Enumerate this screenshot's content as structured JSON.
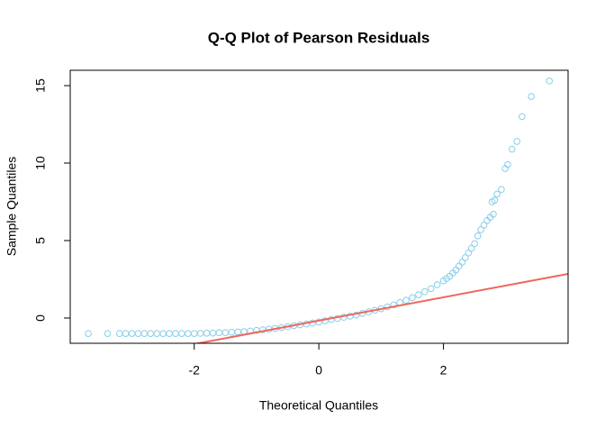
{
  "chart_data": {
    "type": "scatter",
    "title": "Q-Q Plot of Pearson Residuals",
    "x_label": "Theoretical Quantiles",
    "y_label": "Sample Quantiles",
    "color": "#87ceeb",
    "x": [
      -3.7,
      -3.39,
      -3.2,
      -3.1,
      -3.0,
      -2.9,
      -2.8,
      -2.7,
      -2.6,
      -2.5,
      -2.4,
      -2.3,
      -2.2,
      -2.1,
      -2.0,
      -1.9,
      -1.8,
      -1.7,
      -1.6,
      -1.5,
      -1.4,
      -1.3,
      -1.2,
      -1.1,
      -1.0,
      -0.9,
      -0.8,
      -0.7,
      -0.6,
      -0.5,
      -0.4,
      -0.3,
      -0.2,
      -0.1,
      0.0,
      0.1,
      0.2,
      0.3,
      0.4,
      0.5,
      0.6,
      0.7,
      0.8,
      0.9,
      1.0,
      1.1,
      1.2,
      1.3,
      1.4,
      1.5,
      1.6,
      1.7,
      1.8,
      1.9,
      2.0,
      2.05,
      2.1,
      2.15,
      2.2,
      2.25,
      2.3,
      2.35,
      2.4,
      2.45,
      2.5,
      2.55,
      2.6,
      2.65,
      2.7,
      2.75,
      2.8,
      2.78,
      2.82,
      2.86,
      2.93,
      2.99,
      3.03,
      3.1,
      3.18,
      3.26,
      3.41,
      3.7
    ],
    "values": [
      -1.0,
      -1.0,
      -1.0,
      -1.0,
      -1.0,
      -1.0,
      -1.0,
      -1.0,
      -1.0,
      -1.0,
      -1.0,
      -1.0,
      -1.0,
      -1.0,
      -1.0,
      -0.99,
      -0.98,
      -0.97,
      -0.95,
      -0.94,
      -0.92,
      -0.9,
      -0.88,
      -0.84,
      -0.8,
      -0.76,
      -0.72,
      -0.67,
      -0.62,
      -0.56,
      -0.5,
      -0.44,
      -0.38,
      -0.32,
      -0.25,
      -0.18,
      -0.1,
      -0.03,
      0.05,
      0.12,
      0.2,
      0.3,
      0.4,
      0.5,
      0.6,
      0.72,
      0.85,
      1.0,
      1.15,
      1.32,
      1.5,
      1.7,
      1.9,
      2.15,
      2.4,
      2.55,
      2.7,
      2.9,
      3.1,
      3.35,
      3.6,
      3.9,
      4.2,
      4.5,
      4.8,
      5.3,
      5.7,
      6.0,
      6.3,
      6.5,
      6.7,
      7.5,
      7.6,
      8.0,
      8.3,
      9.65,
      9.9,
      10.9,
      11.4,
      13.0,
      14.3,
      15.3
    ],
    "reference_line": {
      "intercept": -0.17,
      "slope": 0.755,
      "color": "#f0665a"
    },
    "xlim": [
      -3.99,
      4.0
    ],
    "ylim": [
      -1.63,
      15.99
    ],
    "xticks": [
      -2,
      0,
      2
    ],
    "yticks": [
      0,
      5,
      10,
      15
    ]
  }
}
